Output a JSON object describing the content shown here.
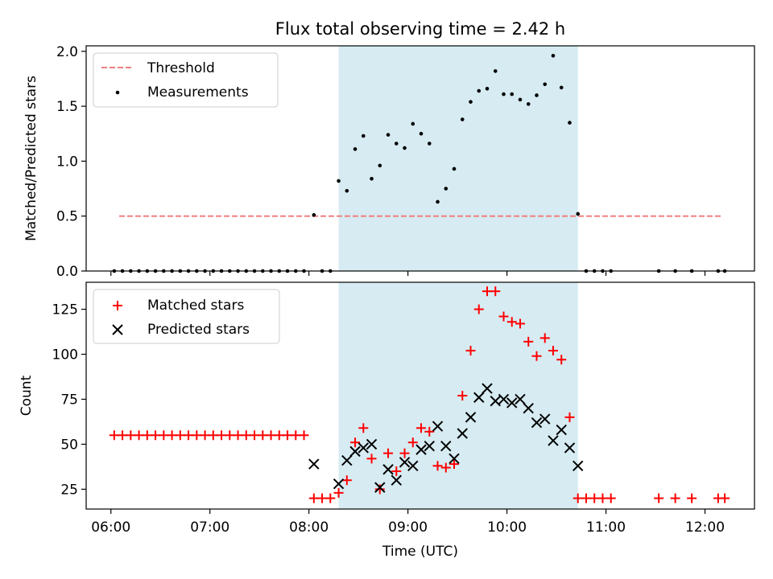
{
  "title": "Flux total observing time = 2.42 h",
  "colors": {
    "threshold": "#f08080",
    "measurement": "#000000",
    "matched": "#ff0000",
    "predicted": "#000000",
    "span": "#add8e6"
  },
  "chart_data": [
    {
      "type": "scatter",
      "ylabel": "Matched/Predicted stars",
      "ylim": [
        0,
        2.05
      ],
      "yticks": [
        0,
        0.5,
        1.0,
        1.5,
        2.0
      ],
      "yticklabels": [
        "0.0",
        "0.5",
        "1.0",
        "1.5",
        "2.0"
      ],
      "xlim": [
        "05:45",
        "12:30"
      ],
      "shaded_span": [
        "08:18",
        "10:43"
      ],
      "legend": {
        "location": "upper left",
        "entries": [
          "Threshold",
          "Measurements"
        ]
      },
      "series": [
        {
          "name": "Threshold",
          "kind": "line",
          "style": "dashed",
          "x": [
            "06:05",
            "12:10"
          ],
          "y": [
            0.5,
            0.5
          ]
        },
        {
          "name": "Measurements",
          "kind": "dots",
          "x": [
            "06:02",
            "06:07",
            "06:12",
            "06:17",
            "06:22",
            "06:27",
            "06:32",
            "06:37",
            "06:42",
            "06:47",
            "06:52",
            "06:57",
            "07:02",
            "07:07",
            "07:12",
            "07:17",
            "07:22",
            "07:27",
            "07:32",
            "07:37",
            "07:42",
            "07:47",
            "07:52",
            "07:57",
            "08:03",
            "08:08",
            "08:13",
            "08:18",
            "08:23",
            "08:28",
            "08:33",
            "08:38",
            "08:43",
            "08:48",
            "08:53",
            "08:58",
            "09:03",
            "09:08",
            "09:13",
            "09:18",
            "09:23",
            "09:28",
            "09:33",
            "09:38",
            "09:43",
            "09:48",
            "09:53",
            "09:58",
            "10:03",
            "10:08",
            "10:13",
            "10:18",
            "10:23",
            "10:28",
            "10:33",
            "10:38",
            "10:43",
            "10:48",
            "10:53",
            "10:58",
            "11:03",
            "11:32",
            "11:42",
            "11:52",
            "12:08",
            "12:12"
          ],
          "y": [
            0,
            0,
            0,
            0,
            0,
            0,
            0,
            0,
            0,
            0,
            0,
            0,
            0,
            0,
            0,
            0,
            0,
            0,
            0,
            0,
            0,
            0,
            0,
            0,
            0.51,
            0,
            0,
            0.82,
            0.73,
            1.11,
            1.23,
            0.84,
            0.96,
            1.24,
            1.16,
            1.12,
            1.34,
            1.25,
            1.16,
            0.63,
            0.75,
            0.93,
            1.38,
            1.54,
            1.64,
            1.66,
            1.82,
            1.61,
            1.61,
            1.56,
            1.52,
            1.6,
            1.7,
            1.96,
            1.67,
            1.35,
            0.52,
            0,
            0,
            0,
            0,
            0,
            0,
            0,
            0,
            0
          ]
        }
      ]
    },
    {
      "type": "scatter",
      "ylabel": "Count",
      "xlabel": "Time (UTC)",
      "ylim": [
        14,
        140
      ],
      "yticks": [
        25,
        50,
        75,
        100,
        125
      ],
      "yticklabels": [
        "25",
        "50",
        "75",
        "100",
        "125"
      ],
      "xlim": [
        "05:45",
        "12:30"
      ],
      "xticks": [
        "06:00",
        "07:00",
        "08:00",
        "09:00",
        "10:00",
        "11:00",
        "12:00"
      ],
      "shaded_span": [
        "08:18",
        "10:43"
      ],
      "legend": {
        "location": "upper left",
        "entries": [
          "Matched stars",
          "Predicted stars"
        ]
      },
      "series": [
        {
          "name": "Matched stars",
          "marker": "plus",
          "x": [
            "06:02",
            "06:07",
            "06:12",
            "06:17",
            "06:22",
            "06:27",
            "06:32",
            "06:37",
            "06:42",
            "06:47",
            "06:52",
            "06:57",
            "07:02",
            "07:07",
            "07:12",
            "07:17",
            "07:22",
            "07:27",
            "07:32",
            "07:37",
            "07:42",
            "07:47",
            "07:52",
            "07:57",
            "08:03",
            "08:08",
            "08:13",
            "08:18",
            "08:23",
            "08:28",
            "08:33",
            "08:38",
            "08:43",
            "08:48",
            "08:53",
            "08:58",
            "09:03",
            "09:08",
            "09:13",
            "09:18",
            "09:23",
            "09:28",
            "09:33",
            "09:38",
            "09:43",
            "09:48",
            "09:53",
            "09:58",
            "10:03",
            "10:08",
            "10:13",
            "10:18",
            "10:23",
            "10:28",
            "10:33",
            "10:38",
            "10:43",
            "10:48",
            "10:53",
            "10:58",
            "11:03",
            "11:32",
            "11:42",
            "11:52",
            "12:08",
            "12:12"
          ],
          "y": [
            55,
            55,
            55,
            55,
            55,
            55,
            55,
            55,
            55,
            55,
            55,
            55,
            55,
            55,
            55,
            55,
            55,
            55,
            55,
            55,
            55,
            55,
            55,
            55,
            20,
            20,
            20,
            23,
            30,
            51,
            59,
            42,
            25,
            45,
            35,
            45,
            51,
            59,
            57,
            38,
            37,
            39,
            77,
            102,
            125,
            135,
            135,
            121,
            118,
            117,
            107,
            99,
            109,
            102,
            97,
            65,
            20,
            20,
            20,
            20,
            20,
            20,
            20,
            20,
            20,
            20
          ]
        },
        {
          "name": "Predicted stars",
          "marker": "x",
          "x": [
            "08:03",
            "08:18",
            "08:23",
            "08:28",
            "08:33",
            "08:38",
            "08:43",
            "08:48",
            "08:53",
            "08:58",
            "09:03",
            "09:08",
            "09:13",
            "09:18",
            "09:23",
            "09:28",
            "09:33",
            "09:38",
            "09:43",
            "09:48",
            "09:53",
            "09:58",
            "10:03",
            "10:08",
            "10:13",
            "10:18",
            "10:23",
            "10:28",
            "10:33",
            "10:38",
            "10:43"
          ],
          "y": [
            39,
            28,
            41,
            46,
            48,
            50,
            26,
            36,
            30,
            40,
            38,
            47,
            49,
            60,
            49,
            42,
            56,
            65,
            76,
            81,
            74,
            75,
            73,
            75,
            70,
            62,
            64,
            52,
            58,
            48,
            38
          ]
        }
      ]
    }
  ]
}
